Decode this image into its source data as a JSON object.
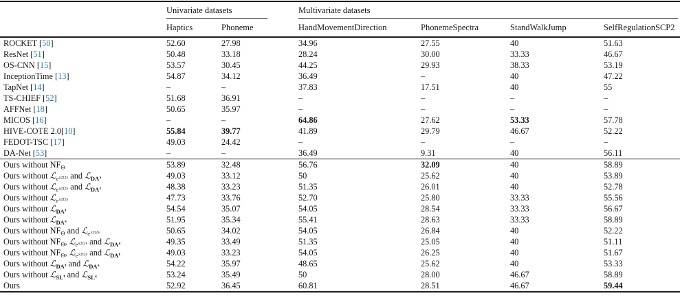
{
  "table": {
    "colors": {
      "citation": "#2280b4"
    },
    "group_headers": [
      {
        "label": "Univariate datasets",
        "span": 2
      },
      {
        "label": "Multivariate datasets",
        "span": 4
      }
    ],
    "columns": [
      "Haptics",
      "Phoneme",
      "HandMovementDirection",
      "PhonemeSpectra",
      "StandWalkJump",
      "SelfRegulationSCP2"
    ],
    "sections": [
      {
        "rows": [
          {
            "label": [
              {
                "t": "ROCKET "
              },
              {
                "cite": "50"
              }
            ],
            "values": [
              "52.60",
              "27.98",
              "34.96",
              "27.55",
              "40",
              "51.63"
            ],
            "bold": []
          },
          {
            "label": [
              {
                "t": "ResNet "
              },
              {
                "cite": "51"
              }
            ],
            "values": [
              "50.48",
              "33.18",
              "28.24",
              "30.00",
              "33.33",
              "46.67"
            ],
            "bold": []
          },
          {
            "label": [
              {
                "t": "OS-CNN "
              },
              {
                "cite": "15"
              }
            ],
            "values": [
              "53.57",
              "30.45",
              "44.25",
              "29.93",
              "38.33",
              "53.19"
            ],
            "bold": []
          },
          {
            "label": [
              {
                "t": "InceptionTime "
              },
              {
                "cite": "13"
              }
            ],
            "values": [
              "54.87",
              "34.12",
              "36.49",
              "–",
              "40",
              "47.22"
            ],
            "bold": []
          },
          {
            "label": [
              {
                "t": "TapNet "
              },
              {
                "cite": "14"
              }
            ],
            "values": [
              "–",
              "–",
              "37.83",
              "17.51",
              "40",
              "55"
            ],
            "bold": []
          },
          {
            "label": [
              {
                "t": "TS-CHIEF "
              },
              {
                "cite": "52"
              }
            ],
            "values": [
              "51.68",
              "36.91",
              "–",
              "–",
              "–",
              "–"
            ],
            "bold": []
          },
          {
            "label": [
              {
                "t": "AFFNet "
              },
              {
                "cite": "18"
              }
            ],
            "values": [
              "50.65",
              "35.97",
              "–",
              "–",
              "–",
              "–"
            ],
            "bold": []
          },
          {
            "label": [
              {
                "t": "MICOS "
              },
              {
                "cite": "16"
              }
            ],
            "values": [
              "–",
              "–",
              "64.86",
              "27.62",
              "53.33",
              "57.78"
            ],
            "bold": [
              2,
              4
            ]
          },
          {
            "label": [
              {
                "t": "HIVE-COTE 2.0"
              },
              {
                "cite": "10"
              }
            ],
            "values": [
              "55.84",
              "39.77",
              "41.89",
              "29.79",
              "46.67",
              "52.22"
            ],
            "bold": [
              0,
              1
            ]
          },
          {
            "label": [
              {
                "t": "FEDOT-TSC "
              },
              {
                "cite": "17"
              }
            ],
            "values": [
              "49.03",
              "24.42",
              "–",
              "–",
              "–",
              "–"
            ],
            "bold": []
          },
          {
            "label": [
              {
                "t": "DA-Net "
              },
              {
                "cite": "53"
              }
            ],
            "values": [
              "–",
              "–",
              "36.49",
              "9.31",
              "40",
              "56.11"
            ],
            "bold": []
          }
        ]
      },
      {
        "rows": [
          {
            "label": [
              {
                "t": "Ours without "
              },
              {
                "m": {
                  "base": "NF",
                  "sub": "Θ"
                }
              }
            ],
            "values": [
              "53.89",
              "32.48",
              "56.76",
              "32.09",
              "40",
              "58.89"
            ],
            "bold": [
              3
            ]
          },
          {
            "label": [
              {
                "t": "Ours without "
              },
              {
                "m": {
                  "base": "ℒ",
                  "sub": "e",
                  "subsup": "s2t2s"
                }
              },
              {
                "t": " and "
              },
              {
                "m": {
                  "base": "ℒ",
                  "sub": "DA",
                  "subsup": "s",
                  "subBold": true
                }
              }
            ],
            "values": [
              "49.03",
              "33.12",
              "50",
              "25.62",
              "40",
              "53.89"
            ],
            "bold": []
          },
          {
            "label": [
              {
                "t": "Ours without "
              },
              {
                "m": {
                  "base": "ℒ",
                  "sub": "e",
                  "subsup": "s2t2s"
                }
              },
              {
                "t": " and "
              },
              {
                "m": {
                  "base": "ℒ",
                  "sub": "DA",
                  "subsup": "t",
                  "subBold": true
                }
              }
            ],
            "values": [
              "48.38",
              "33.23",
              "51.35",
              "26.01",
              "40",
              "52.78"
            ],
            "bold": []
          },
          {
            "label": [
              {
                "t": "Ours without "
              },
              {
                "m": {
                  "base": "ℒ",
                  "sub": "e",
                  "subsup": "s2t2s"
                }
              }
            ],
            "values": [
              "47.73",
              "33.76",
              "52.70",
              "25.80",
              "33.33",
              "55.56"
            ],
            "bold": []
          },
          {
            "label": [
              {
                "t": "Ours without "
              },
              {
                "m": {
                  "base": "ℒ",
                  "sub": "DA",
                  "subsup": "t",
                  "subBold": true
                }
              }
            ],
            "values": [
              "54.54",
              "35.07",
              "54.05",
              "28.54",
              "33.33",
              "56.67"
            ],
            "bold": []
          },
          {
            "label": [
              {
                "t": "Ours without "
              },
              {
                "m": {
                  "base": "ℒ",
                  "sub": "DA",
                  "subsup": "s",
                  "subBold": true
                }
              }
            ],
            "values": [
              "51.95",
              "35.34",
              "55.41",
              "28.63",
              "33.33",
              "58.89"
            ],
            "bold": []
          },
          {
            "label": [
              {
                "t": "Ours without "
              },
              {
                "m": {
                  "base": "NF",
                  "sub": "Θ"
                }
              },
              {
                "t": " and "
              },
              {
                "m": {
                  "base": "ℒ",
                  "sub": "e",
                  "subsup": "s2t2s"
                }
              }
            ],
            "values": [
              "50.65",
              "34.02",
              "54.05",
              "26.84",
              "40",
              "52.22"
            ],
            "bold": []
          },
          {
            "label": [
              {
                "t": "Ours without "
              },
              {
                "m": {
                  "base": "NF",
                  "sub": "Θ"
                }
              },
              {
                "t": ", "
              },
              {
                "m": {
                  "base": "ℒ",
                  "sub": "e",
                  "subsup": "s2t2s"
                }
              },
              {
                "t": " and "
              },
              {
                "m": {
                  "base": "ℒ",
                  "sub": "DA",
                  "subsup": "s",
                  "subBold": true
                }
              }
            ],
            "values": [
              "49.35",
              "33.49",
              "51.35",
              "25.05",
              "40",
              "51.11"
            ],
            "bold": []
          },
          {
            "label": [
              {
                "t": "Ours without "
              },
              {
                "m": {
                  "base": "NF",
                  "sub": "Θ"
                }
              },
              {
                "t": ", "
              },
              {
                "m": {
                  "base": "ℒ",
                  "sub": "e",
                  "subsup": "s2t2s"
                }
              },
              {
                "t": " and "
              },
              {
                "m": {
                  "base": "ℒ",
                  "sub": "DA",
                  "subsup": "t",
                  "subBold": true
                }
              }
            ],
            "values": [
              "49.03",
              "33.23",
              "54.05",
              "26.25",
              "40",
              "51.67"
            ],
            "bold": []
          },
          {
            "label": [
              {
                "t": "Ours without "
              },
              {
                "m": {
                  "base": "ℒ",
                  "sub": "DA",
                  "subsup": "t",
                  "subBold": true
                }
              },
              {
                "t": " and "
              },
              {
                "m": {
                  "base": "ℒ",
                  "sub": "DA",
                  "subsup": "s",
                  "subBold": true
                }
              }
            ],
            "values": [
              "54.22",
              "35.97",
              "48.65",
              "25.62",
              "40",
              "53.33"
            ],
            "bold": []
          },
          {
            "label": [
              {
                "t": "Ours without "
              },
              {
                "m": {
                  "base": "ℒ",
                  "sub": "SL",
                  "subsup": "t",
                  "subBold": true
                }
              },
              {
                "t": " and "
              },
              {
                "m": {
                  "base": "ℒ",
                  "sub": "SL",
                  "subsup": "s",
                  "subBold": true
                }
              }
            ],
            "values": [
              "53.24",
              "35.49",
              "50",
              "28.00",
              "46.67",
              "58.89"
            ],
            "bold": []
          },
          {
            "label": [
              {
                "t": "Ours"
              }
            ],
            "values": [
              "52.92",
              "36.45",
              "60.81",
              "28.51",
              "46.67",
              "59.44"
            ],
            "bold": [
              5
            ]
          }
        ]
      }
    ]
  }
}
